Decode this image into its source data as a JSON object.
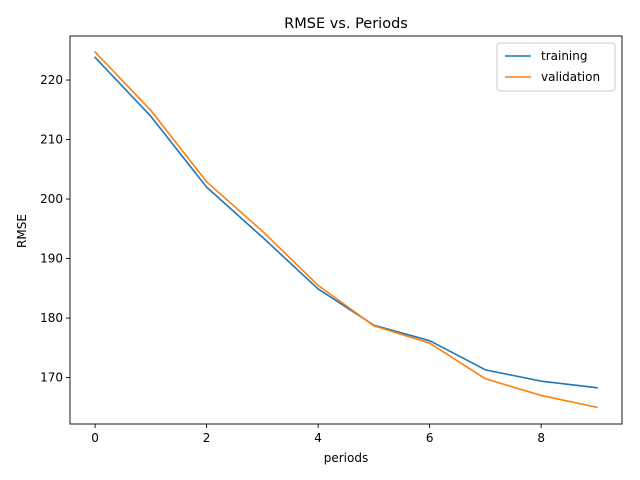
{
  "chart_data": {
    "type": "line",
    "title": "RMSE vs. Periods",
    "xlabel": "periods",
    "ylabel": "RMSE",
    "xlim": [
      -0.45,
      9.45
    ],
    "ylim": [
      162.2,
      227.4
    ],
    "xticks": [
      0,
      2,
      4,
      6,
      8
    ],
    "yticks": [
      170,
      180,
      190,
      200,
      210,
      220
    ],
    "grid": false,
    "legend_position": "top-right",
    "x": [
      0,
      1,
      2,
      3,
      4,
      5,
      6,
      7,
      8,
      9
    ],
    "series": [
      {
        "name": "training",
        "color": "#1f77b4",
        "values": [
          223.8,
          213.9,
          202.0,
          193.6,
          184.9,
          178.8,
          176.2,
          171.3,
          169.4,
          168.3
        ]
      },
      {
        "name": "validation",
        "color": "#ff7f0e",
        "values": [
          224.7,
          214.9,
          202.9,
          194.6,
          185.5,
          178.7,
          175.8,
          169.8,
          167.0,
          165.0
        ]
      }
    ]
  }
}
